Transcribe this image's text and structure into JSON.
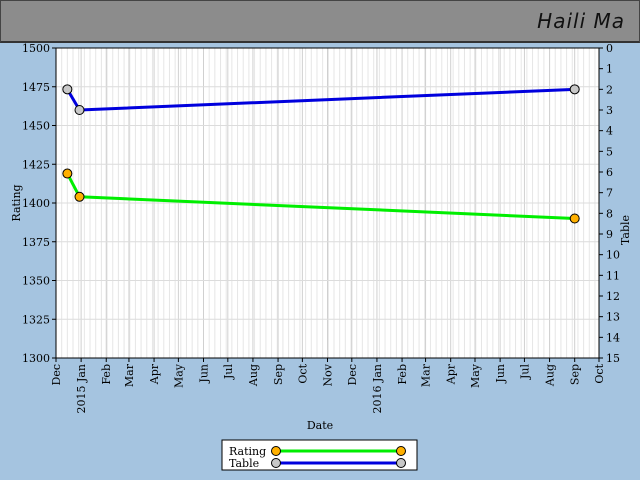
{
  "header": {
    "player_name": "Haili Ma"
  },
  "chart_data": {
    "type": "line",
    "title": "",
    "xlabel": "Date",
    "ylabel_left": "Rating",
    "ylabel_right": "Table",
    "x_tick_labels": [
      "Dec",
      "2015 Jan",
      "Feb",
      "Mar",
      "Apr",
      "May",
      "Jun",
      "Jul",
      "Aug",
      "Sep",
      "Oct",
      "Nov",
      "Dec",
      "2016 Jan",
      "Feb",
      "Mar",
      "Apr",
      "May",
      "Jun",
      "Jul",
      "Aug",
      "Sep",
      "Oct"
    ],
    "x_range": [
      "2014-12-01",
      "2016-10-01"
    ],
    "ylim_left": [
      1300,
      1500
    ],
    "yticks_left": [
      1300,
      1325,
      1350,
      1375,
      1400,
      1425,
      1450,
      1475,
      1500
    ],
    "ylim_right": [
      15,
      0
    ],
    "yticks_right": [
      0,
      1,
      2,
      3,
      4,
      5,
      6,
      7,
      8,
      9,
      10,
      11,
      12,
      13,
      14,
      15
    ],
    "grid": true,
    "legend_placement": "bottom-center",
    "series": [
      {
        "name": "Rating",
        "axis": "left",
        "color": "#00ee00",
        "marker_color": "#ffb000",
        "points": [
          {
            "x": "2014-12-15",
            "y": 1419
          },
          {
            "x": "2014-12-30",
            "y": 1404
          },
          {
            "x": "2016-09-01",
            "y": 1390
          }
        ]
      },
      {
        "name": "Table",
        "axis": "right",
        "color": "#0000dd",
        "marker_color": "#c8c8c8",
        "points": [
          {
            "x": "2014-12-15",
            "y": 2.0
          },
          {
            "x": "2014-12-30",
            "y": 3.0
          },
          {
            "x": "2016-09-01",
            "y": 2.0
          }
        ]
      }
    ]
  }
}
